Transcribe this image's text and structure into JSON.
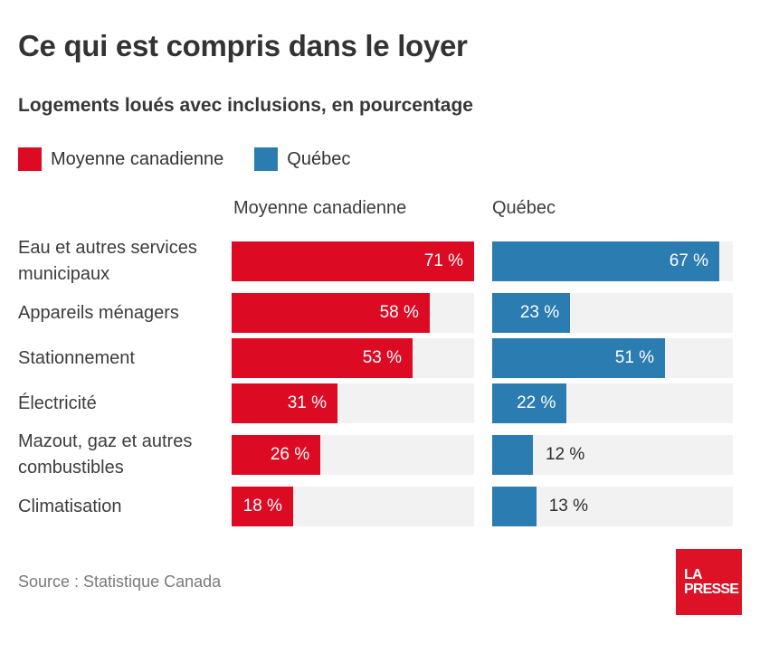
{
  "title": "Ce qui est compris dans le loyer",
  "subtitle": "Logements loués avec inclusions, en pourcentage",
  "legend": [
    {
      "label": "Moyenne canadienne",
      "color": "#dd0a23"
    },
    {
      "label": "Québec",
      "color": "#2b7cb1"
    }
  ],
  "columns": [
    "Moyenne canadienne",
    "Québec"
  ],
  "source": "Source : Statistique Canada",
  "logo": {
    "line1": "LA",
    "line2": "PRESSE",
    "color": "#dd1226"
  },
  "colors": {
    "canada_red": "#dd0a23",
    "quebec_blue": "#2b7cb1",
    "track_gray": "#f2f2f2",
    "text_dark": "#333333",
    "source_gray": "#7a7a7a"
  },
  "chart_data": {
    "type": "bar",
    "orientation": "horizontal",
    "title": "Ce qui est compris dans le loyer",
    "subtitle": "Logements loués avec inclusions, en pourcentage",
    "categories": [
      "Eau et autres services municipaux",
      "Appareils ménagers",
      "Stationnement",
      "Électricité",
      "Mazout, gaz et autres combustibles",
      "Climatisation"
    ],
    "series": [
      {
        "name": "Moyenne canadienne",
        "color": "#dd0a23",
        "values": [
          71,
          58,
          53,
          31,
          26,
          18
        ]
      },
      {
        "name": "Québec",
        "color": "#2b7cb1",
        "values": [
          67,
          23,
          51,
          22,
          12,
          13
        ]
      }
    ],
    "value_suffix": " %",
    "xlim": [
      0,
      71
    ],
    "grid": false,
    "legend_position": "top",
    "track_color": "#f2f2f2"
  }
}
